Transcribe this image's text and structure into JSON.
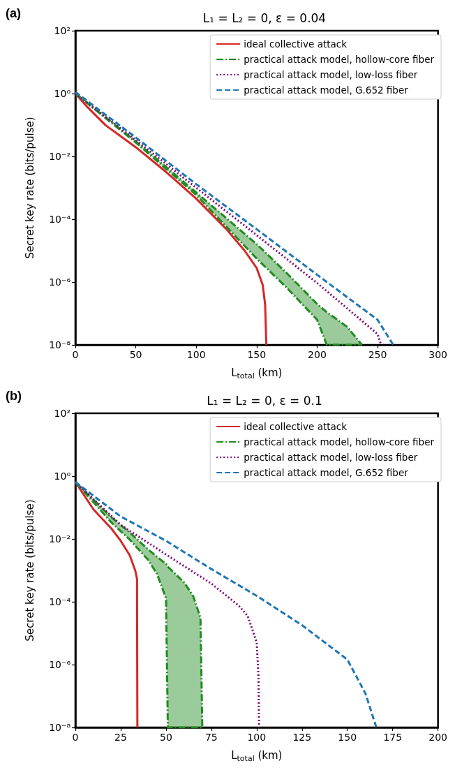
{
  "chart_data": [
    {
      "type": "line",
      "title": "L₁ = L₂ = 0, ε = 0.04",
      "xlabel": "L$_{total}$ (km)",
      "ylabel": "Secret key rate (bits/pulse)",
      "annotations": [
        "(a)"
      ],
      "log": "y",
      "grid": false,
      "legend": "top right",
      "xlim": [
        0,
        300
      ],
      "xticks": [
        0,
        50,
        100,
        150,
        200,
        250,
        300
      ],
      "ylim": [
        1e-08,
        100
      ],
      "yticks": [
        {
          "value": 1e-08,
          "label": "10⁻⁸"
        },
        {
          "value": 1e-06,
          "label": "10⁻⁶"
        },
        {
          "value": 0.0001,
          "label": "10⁻⁴"
        },
        {
          "value": 0.01,
          "label": "10⁻²"
        },
        {
          "value": 1,
          "label": "10⁰"
        },
        {
          "value": 100,
          "label": "10²"
        }
      ],
      "series": [
        {
          "name": "ideal collective attack",
          "color": "#d62728",
          "line_style": "solid",
          "x": [
            0,
            10,
            25,
            50,
            75,
            100,
            125,
            140,
            150,
            155,
            157,
            158
          ],
          "values": [
            1,
            0.37,
            0.098,
            0.0195,
            0.0032,
            0.00045,
            4.8e-05,
            1e-05,
            2.8e-06,
            8e-07,
            1.9e-07,
            1e-08
          ]
        },
        {
          "name": "practical attack model, hollow-core fiber",
          "color": "#228b22",
          "line_style": "dashdot",
          "x": [
            0,
            50,
            100,
            150,
            175,
            200,
            208,
            225,
            237
          ],
          "values": [
            1,
            0.03,
            0.00071,
            1.6e-05,
            1.9e-06,
            2e-07,
            1.1e-07,
            3.7e-08,
            1e-08
          ],
          "upper": [
            1,
            0.03,
            0.00071,
            1.6e-05,
            1.9e-06,
            2e-07,
            1.1e-07,
            3.7e-08,
            1e-08
          ],
          "lower": [
            1,
            0.0275,
            0.00059,
            5.6e-06,
            6.5e-07,
            6.3e-08,
            1e-08,
            1e-08,
            1e-08
          ]
        },
        {
          "name": "practical attack model, low-loss fiber",
          "color": "#800080",
          "line_style": "dotted",
          "x": [
            0,
            50,
            100,
            150,
            200,
            250,
            253
          ],
          "values": [
            1,
            0.033,
            0.001,
            3.1e-05,
            9.3e-07,
            2.2e-08,
            1e-08
          ]
        },
        {
          "name": "practical attack model, G.652 fiber",
          "color": "#1f77b4",
          "line_style": "dashed",
          "x": [
            0,
            50,
            100,
            150,
            200,
            250,
            263
          ],
          "values": [
            1.12,
            0.04,
            0.0013,
            4.8e-05,
            1.7e-06,
            6.3e-08,
            1e-08
          ]
        }
      ]
    },
    {
      "type": "line",
      "title": "L₁ = L₂ = 0, ε = 0.1",
      "xlabel": "L$_{total}$ (km)",
      "ylabel": "Secret key rate (bits/pulse)",
      "annotations": [
        "(b)"
      ],
      "log": "y",
      "grid": false,
      "legend": "top right",
      "xlim": [
        0,
        200
      ],
      "xticks": [
        0,
        25,
        50,
        75,
        100,
        125,
        150,
        175,
        200
      ],
      "ylim": [
        1e-08,
        100
      ],
      "yticks": [
        {
          "value": 1e-08,
          "label": "10⁻⁸"
        },
        {
          "value": 1e-06,
          "label": "10⁻⁶"
        },
        {
          "value": 0.0001,
          "label": "10⁻⁴"
        },
        {
          "value": 0.01,
          "label": "10⁻²"
        },
        {
          "value": 1,
          "label": "10⁰"
        },
        {
          "value": 100,
          "label": "10²"
        }
      ],
      "series": [
        {
          "name": "ideal collective attack",
          "color": "#d62728",
          "line_style": "solid",
          "x": [
            0,
            10,
            20,
            25,
            30,
            33,
            34,
            34.2
          ],
          "values": [
            0.65,
            0.087,
            0.021,
            0.0087,
            0.003,
            0.001,
            0.00054,
            1e-08
          ]
        },
        {
          "name": "practical attack model, hollow-core fiber",
          "color": "#228b22",
          "line_style": "dashdot",
          "x": [
            0,
            20,
            30,
            40,
            45,
            50,
            51,
            60,
            65,
            69,
            70
          ],
          "values": [
            0.65,
            0.048,
            0.016,
            0.0047,
            0.0027,
            0.0016,
            0.0013,
            0.00041,
            0.00015,
            3.1e-05,
            1e-08
          ],
          "upper": [
            0.65,
            0.048,
            0.016,
            0.0047,
            0.0027,
            0.0016,
            0.0013,
            0.00041,
            0.00015,
            3.1e-05,
            1e-08
          ],
          "lower": [
            0.65,
            0.033,
            0.0095,
            0.0022,
            0.00078,
            0.00013,
            1e-08,
            1e-08,
            1e-08,
            1e-08,
            1e-08
          ]
        },
        {
          "name": "practical attack model, low-loss fiber",
          "color": "#800080",
          "line_style": "dotted",
          "x": [
            0,
            25,
            50,
            75,
            90,
            95,
            100,
            101,
            101.3
          ],
          "values": [
            0.65,
            0.028,
            0.0032,
            0.00038,
            7.6e-05,
            3.6e-05,
            5.1e-06,
            4.2e-07,
            1e-08
          ]
        },
        {
          "name": "practical attack model, G.652 fiber",
          "color": "#1f77b4",
          "line_style": "dashed",
          "x": [
            0,
            25,
            50,
            75,
            100,
            125,
            150,
            160,
            166
          ],
          "values": [
            0.65,
            0.052,
            0.0087,
            0.0011,
            0.000155,
            1.8e-05,
            1.45e-06,
            1.2e-07,
            1e-08
          ]
        }
      ]
    }
  ]
}
